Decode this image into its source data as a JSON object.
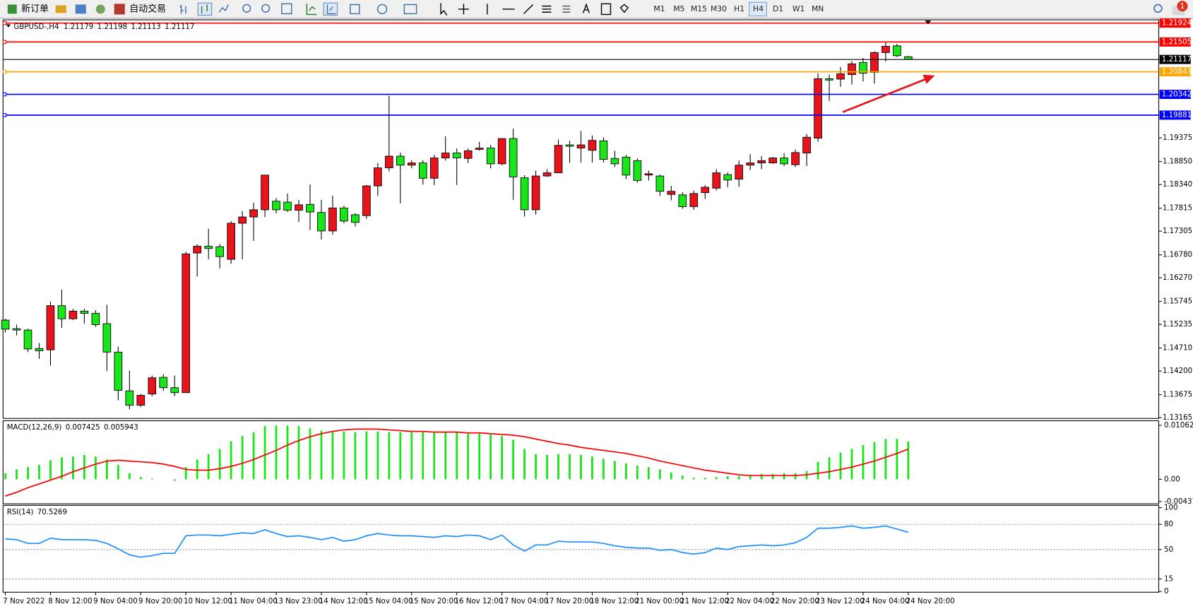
{
  "toolbar": {
    "new_order": "新订单",
    "auto_trading": "自动交易",
    "timeframes": [
      "M1",
      "M5",
      "M15",
      "M30",
      "H1",
      "H4",
      "D1",
      "W1",
      "MN"
    ],
    "notifications": 1
  },
  "chart_data": {
    "type": "candlestick",
    "symbol": "GBPUSD-,H4",
    "categories": [
      "7 Nov 2022",
      null,
      null,
      null,
      "8 Nov 12:00",
      null,
      null,
      null,
      "9 Nov 04:00",
      null,
      null,
      null,
      "9 Nov 20:00",
      null,
      null,
      null,
      "10 Nov 12:00",
      null,
      null,
      null,
      "11 Nov 04:00",
      null,
      null,
      null,
      "13 Nov 23:00",
      null,
      null,
      null,
      "14 Nov 12:00",
      null,
      null,
      null,
      "15 Nov 04:00",
      null,
      null,
      null,
      "15 Nov 20:00",
      null,
      null,
      null,
      "16 Nov 12:00",
      null,
      null,
      null,
      "17 Nov 04:00",
      null,
      null,
      null,
      "17 Nov 20:00",
      null,
      null,
      null,
      "18 Nov 12:00",
      null,
      null,
      null,
      "21 Nov 00:00",
      null,
      null,
      null,
      "21 Nov 12:00",
      null,
      null,
      null,
      "22 Nov 04:00",
      null,
      null,
      null,
      "22 Nov 20:00",
      null,
      null,
      null,
      "23 Nov 12:00",
      null,
      null,
      null,
      "24 Nov 04:00",
      null,
      null,
      null,
      "24 Nov 20:00"
    ],
    "ohlc": [
      [
        1.1533,
        1.1536,
        1.1506,
        1.1513
      ],
      [
        1.1514,
        1.1523,
        1.1499,
        1.1511
      ],
      [
        1.1511,
        1.1514,
        1.1462,
        1.1469
      ],
      [
        1.147,
        1.1482,
        1.1447,
        1.1465
      ],
      [
        1.1467,
        1.1574,
        1.1432,
        1.1565
      ],
      [
        1.1565,
        1.1601,
        1.1516,
        1.1536
      ],
      [
        1.1536,
        1.1558,
        1.1533,
        1.1553
      ],
      [
        1.1553,
        1.1558,
        1.1525,
        1.1548
      ],
      [
        1.1548,
        1.1555,
        1.1518,
        1.1523
      ],
      [
        1.1525,
        1.1567,
        1.142,
        1.1462
      ],
      [
        1.1462,
        1.1474,
        1.1355,
        1.1377
      ],
      [
        1.1376,
        1.1421,
        1.1335,
        1.1344
      ],
      [
        1.1344,
        1.1369,
        1.134,
        1.1366
      ],
      [
        1.1369,
        1.141,
        1.1364,
        1.1405
      ],
      [
        1.1406,
        1.1413,
        1.1376,
        1.1383
      ],
      [
        1.1383,
        1.141,
        1.1364,
        1.1372
      ],
      [
        1.1372,
        1.1685,
        1.1372,
        1.168
      ],
      [
        1.1682,
        1.1701,
        1.163,
        1.1697
      ],
      [
        1.1697,
        1.1736,
        1.1668,
        1.1692
      ],
      [
        1.1696,
        1.1702,
        1.1648,
        1.1674
      ],
      [
        1.1668,
        1.1753,
        1.1658,
        1.1748
      ],
      [
        1.1748,
        1.1775,
        1.1668,
        1.1762
      ],
      [
        1.1762,
        1.1794,
        1.1709,
        1.1778
      ],
      [
        1.1778,
        1.1855,
        1.1762,
        1.1855
      ],
      [
        1.1797,
        1.1804,
        1.177,
        1.1778
      ],
      [
        1.1795,
        1.1814,
        1.1773,
        1.1777
      ],
      [
        1.1777,
        1.18,
        1.1751,
        1.1789
      ],
      [
        1.179,
        1.1834,
        1.1733,
        1.1773
      ],
      [
        1.1772,
        1.18,
        1.1712,
        1.1731
      ],
      [
        1.1731,
        1.1809,
        1.1723,
        1.1782
      ],
      [
        1.1782,
        1.1787,
        1.1748,
        1.1753
      ],
      [
        1.1767,
        1.177,
        1.1741,
        1.175
      ],
      [
        1.1765,
        1.1833,
        1.1758,
        1.1831
      ],
      [
        1.1831,
        1.1882,
        1.1809,
        1.1871
      ],
      [
        1.1871,
        1.2031,
        1.1863,
        1.1897
      ],
      [
        1.1897,
        1.1905,
        1.1792,
        1.1877
      ],
      [
        1.1877,
        1.1888,
        1.187,
        1.1882
      ],
      [
        1.1882,
        1.1888,
        1.1834,
        1.1848
      ],
      [
        1.1848,
        1.19,
        1.1833,
        1.1893
      ],
      [
        1.1893,
        1.1941,
        1.1887,
        1.1904
      ],
      [
        1.1904,
        1.1914,
        1.1833,
        1.1893
      ],
      [
        1.1892,
        1.1914,
        1.1882,
        1.1909
      ],
      [
        1.1912,
        1.1929,
        1.1909,
        1.1915
      ],
      [
        1.1915,
        1.1922,
        1.187,
        1.188
      ],
      [
        1.188,
        1.1937,
        1.1877,
        1.1936
      ],
      [
        1.1936,
        1.1958,
        1.18,
        1.1851
      ],
      [
        1.1849,
        1.1855,
        1.1763,
        1.1778
      ],
      [
        1.1778,
        1.1865,
        1.1767,
        1.1853
      ],
      [
        1.1853,
        1.1868,
        1.1851,
        1.186
      ],
      [
        1.186,
        1.1934,
        1.186,
        1.1921
      ],
      [
        1.1922,
        1.1931,
        1.1882,
        1.1919
      ],
      [
        1.1915,
        1.1953,
        1.1883,
        1.1922
      ],
      [
        1.191,
        1.1943,
        1.1883,
        1.1932
      ],
      [
        1.1931,
        1.1939,
        1.1883,
        1.189
      ],
      [
        1.1892,
        1.1909,
        1.1873,
        1.188
      ],
      [
        1.1895,
        1.19,
        1.1846,
        1.1855
      ],
      [
        1.1887,
        1.1892,
        1.1838,
        1.1843
      ],
      [
        1.1855,
        1.1865,
        1.1843,
        1.1858
      ],
      [
        1.1853,
        1.1856,
        1.1809,
        1.1819
      ],
      [
        1.1812,
        1.1831,
        1.1799,
        1.1819
      ],
      [
        1.1811,
        1.1817,
        1.178,
        1.1785
      ],
      [
        1.1785,
        1.1821,
        1.1778,
        1.1814
      ],
      [
        1.1816,
        1.1833,
        1.1802,
        1.1828
      ],
      [
        1.1826,
        1.1868,
        1.1821,
        1.186
      ],
      [
        1.1856,
        1.1861,
        1.1828,
        1.1844
      ],
      [
        1.1846,
        1.1887,
        1.1829,
        1.1877
      ],
      [
        1.1877,
        1.1902,
        1.1866,
        1.1882
      ],
      [
        1.1882,
        1.1897,
        1.1868,
        1.1887
      ],
      [
        1.1882,
        1.1895,
        1.188,
        1.1893
      ],
      [
        1.1893,
        1.1904,
        1.1875,
        1.188
      ],
      [
        1.1878,
        1.1912,
        1.1873,
        1.1905
      ],
      [
        1.1904,
        1.1946,
        1.1875,
        1.1939
      ],
      [
        1.1937,
        1.2081,
        1.1929,
        1.2069
      ],
      [
        1.2069,
        1.2078,
        1.2019,
        1.2066
      ],
      [
        1.2068,
        1.2095,
        1.2051,
        1.208
      ],
      [
        1.2078,
        1.2108,
        1.2056,
        1.2102
      ],
      [
        1.2105,
        1.2115,
        1.2063,
        1.2081
      ],
      [
        1.2083,
        1.213,
        1.2058,
        1.2127
      ],
      [
        1.2127,
        1.2151,
        1.2107,
        1.2141
      ],
      [
        1.2142,
        1.2146,
        1.2117,
        1.212
      ],
      [
        1.21179,
        1.21198,
        1.21113,
        1.21117
      ]
    ],
    "up_color": "#e8141c",
    "down_color": "#19e619",
    "ylim": [
      1.13147,
      1.2198
    ],
    "yticks": [
      1.19375,
      {
        "value": 1.1885,
        "label": "1.18850"
      },
      {
        "value": 1.1834,
        "label": "1.18340"
      },
      1.17815,
      1.17305,
      {
        "value": 1.1678,
        "label": "1.16780"
      },
      {
        "value": 1.1627,
        "label": "1.16270"
      },
      1.15745,
      1.15235,
      {
        "value": 1.1471,
        "label": "1.14710"
      },
      {
        "value": 1.142,
        "label": "1.14200"
      },
      1.13675,
      1.13165
    ],
    "levels": [
      {
        "value": 1.21924,
        "color": "#ff0000"
      },
      {
        "value": 1.21505,
        "color": "#ff0000"
      },
      {
        "value": 1.20843,
        "color": "#ffa500"
      },
      {
        "value": 1.20342,
        "color": "#0000ff"
      },
      {
        "value": 1.19881,
        "color": "#0000ff"
      }
    ],
    "indicators": [
      {
        "type": "macd",
        "name": "MACD(12,26,9)",
        "color": "#19e619",
        "signal_color": "#ff0000",
        "values": [
          0.001197,
          0.001946,
          0.002395,
          0.002844,
          0.003742,
          0.004341,
          0.00449,
          0.00479,
          0.00449,
          0.003892,
          0.002844,
          0.001197,
          0.000449,
          0.00015,
          0,
          -0.000299,
          0.002395,
          0.003892,
          0.00494,
          0.005988,
          0.007484,
          0.008532,
          0.009281,
          0.010478,
          0.0106,
          0.0106,
          0.010478,
          0.010029,
          0.00958,
          0.00943,
          0.00943,
          0.009281,
          0.00943,
          0.00943,
          0.009281,
          0.009281,
          0.009281,
          0.009281,
          0.009281,
          0.009281,
          0.009281,
          0.009131,
          0.008981,
          0.008832,
          0.008532,
          0.007784,
          0.005988,
          0.00494,
          0.00479,
          0.00494,
          0.00494,
          0.00479,
          0.00449,
          0.004042,
          0.003593,
          0.003144,
          0.002694,
          0.002395,
          0.001946,
          0.001347,
          0.000748,
          0.000299,
          0.000299,
          0.000449,
          0.000599,
          0.000599,
          0.000898,
          0.001048,
          0.001048,
          0.001197,
          0.001197,
          0.001647,
          0.003443,
          0.004341,
          0.005239,
          0.005988,
          0.006736,
          0.007335,
          0.007934,
          0.007934,
          0.007425
        ],
        "signal": [
          -0.003293,
          -0.002545,
          -0.001647,
          -0.000898,
          -0.00015,
          0.000599,
          0.001497,
          0.002246,
          0.002994,
          0.003593,
          0.003742,
          0.003593,
          0.003443,
          0.003293,
          0.002994,
          0.002545,
          0.001946,
          0.001796,
          0.001796,
          0.002096,
          0.002545,
          0.003144,
          0.003892,
          0.00479,
          0.005689,
          0.006736,
          0.007635,
          0.008383,
          0.008981,
          0.00943,
          0.009731,
          0.00988,
          0.00988,
          0.00988,
          0.009731,
          0.00958,
          0.00943,
          0.00943,
          0.009281,
          0.009281,
          0.009281,
          0.009131,
          0.009131,
          0.008981,
          0.008832,
          0.008683,
          0.008383,
          0.007934,
          0.007484,
          0.007036,
          0.006736,
          0.006287,
          0.005988,
          0.005689,
          0.005389,
          0.00509,
          0.004641,
          0.004191,
          0.003593,
          0.003144,
          0.002694,
          0.002246,
          0.001796,
          0.001497,
          0.001197,
          0.000898,
          0.000748,
          0.000748,
          0.000748,
          0.000748,
          0.000748,
          0.000898,
          0.001197,
          0.001497,
          0.001946,
          0.002395,
          0.002994,
          0.003593,
          0.004341,
          0.00509,
          0.005943
        ],
        "ylim": [
          -0.004371,
          0.010627
        ],
        "yticks": [
          0.010627,
          {
            "value": 0,
            "label": "0.00"
          },
          -0.004371
        ]
      },
      {
        "type": "line",
        "name": "RSI(14)",
        "color": "#1e90ff",
        "values": [
          62.7,
          61.8,
          57.3,
          57.3,
          63.6,
          61.8,
          61.8,
          61.8,
          60.9,
          57.3,
          50.9,
          43.6,
          40.9,
          42.7,
          45.5,
          45.5,
          66.4,
          67.3,
          67.3,
          66.4,
          68.2,
          70.0,
          69.1,
          73.6,
          69.1,
          65.5,
          66.4,
          64.5,
          61.8,
          64.5,
          60.0,
          61.8,
          66.4,
          69.1,
          67.3,
          66.4,
          66.4,
          65.5,
          64.5,
          66.4,
          65.5,
          67.3,
          66.4,
          61.8,
          67.3,
          55.5,
          48.2,
          55.5,
          55.5,
          60.0,
          59.1,
          59.1,
          59.1,
          57.3,
          54.5,
          52.7,
          51.8,
          51.8,
          49.1,
          50.0,
          46.4,
          44.5,
          46.4,
          51.8,
          50.0,
          53.6,
          54.5,
          55.5,
          54.5,
          55.5,
          58.2,
          64.5,
          75.5,
          75.5,
          76.4,
          78.2,
          75.5,
          76.4,
          78.2,
          74.5,
          70.5269
        ],
        "ylim": [
          0,
          100
        ],
        "yticks": [
          100,
          80,
          50,
          15,
          0
        ],
        "dashed_inner_ticks": true
      }
    ]
  }
}
